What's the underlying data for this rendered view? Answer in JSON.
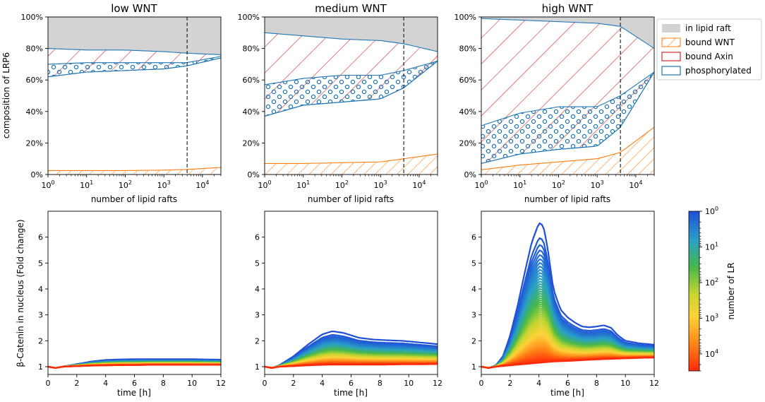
{
  "chart_data": [
    {
      "type": "area",
      "title": "low WNT",
      "xlabel": "number of lipid rafts",
      "ylabel": "composition of LRP6",
      "xscale": "log",
      "xlim": [
        1,
        30000
      ],
      "ylim": [
        0,
        100
      ],
      "x_ticks": [
        "10^0",
        "10^1",
        "10^2",
        "10^3",
        "10^4"
      ],
      "y_ticks": [
        "0%",
        "20%",
        "40%",
        "60%",
        "80%",
        "100%"
      ],
      "threshold_x": 4000,
      "series": [
        {
          "name": "in lipid raft",
          "x": [
            1,
            10,
            100,
            1000,
            4000,
            30000
          ],
          "lower": [
            80,
            79,
            79,
            78,
            77,
            76
          ],
          "upper": [
            100,
            100,
            100,
            100,
            100,
            100
          ]
        },
        {
          "name": "bound Axin",
          "x": [
            1,
            10,
            100,
            1000,
            4000,
            30000
          ],
          "lower": [
            62,
            65,
            66,
            67,
            69,
            74
          ],
          "upper": [
            80,
            79,
            79,
            78,
            77,
            76
          ]
        },
        {
          "name": "phosphorylated",
          "x": [
            1,
            10,
            100,
            1000,
            4000,
            30000
          ],
          "lower": [
            62,
            65,
            66,
            67,
            69,
            74
          ],
          "upper": [
            70,
            71,
            71,
            71,
            71,
            75
          ]
        },
        {
          "name": "bound WNT",
          "x": [
            1,
            10,
            100,
            1000,
            4000,
            30000
          ],
          "lower": [
            0,
            0,
            0,
            0,
            0,
            0
          ],
          "upper": [
            2.5,
            2.5,
            2.5,
            2.8,
            3.2,
            4.5
          ]
        }
      ]
    },
    {
      "type": "area",
      "title": "medium WNT",
      "xlabel": "number of lipid rafts",
      "ylabel": "composition of LRP6",
      "xscale": "log",
      "xlim": [
        1,
        30000
      ],
      "ylim": [
        0,
        100
      ],
      "x_ticks": [
        "10^0",
        "10^1",
        "10^2",
        "10^3",
        "10^4"
      ],
      "y_ticks": [
        "0%",
        "20%",
        "40%",
        "60%",
        "80%",
        "100%"
      ],
      "threshold_x": 4000,
      "series": [
        {
          "name": "in lipid raft",
          "x": [
            1,
            10,
            100,
            1000,
            4000,
            30000
          ],
          "lower": [
            90,
            88,
            86,
            85,
            83,
            78
          ],
          "upper": [
            100,
            100,
            100,
            100,
            100,
            100
          ]
        },
        {
          "name": "bound Axin",
          "x": [
            1,
            10,
            100,
            1000,
            4000,
            30000
          ],
          "lower": [
            37,
            44,
            46,
            48,
            55,
            72
          ],
          "upper": [
            90,
            88,
            86,
            85,
            83,
            78
          ]
        },
        {
          "name": "phosphorylated",
          "x": [
            1,
            10,
            100,
            1000,
            4000,
            30000
          ],
          "lower": [
            37,
            44,
            46,
            48,
            55,
            72
          ],
          "upper": [
            57,
            61,
            63,
            63,
            66,
            72
          ]
        },
        {
          "name": "bound WNT",
          "x": [
            1,
            10,
            100,
            1000,
            4000,
            30000
          ],
          "lower": [
            0,
            0,
            0,
            0,
            0,
            0
          ],
          "upper": [
            7,
            7,
            7.5,
            8,
            10,
            13
          ]
        }
      ]
    },
    {
      "type": "area",
      "title": "high WNT",
      "xlabel": "number of lipid rafts",
      "ylabel": "composition of LRP6",
      "xscale": "log",
      "xlim": [
        1,
        30000
      ],
      "ylim": [
        0,
        100
      ],
      "x_ticks": [
        "10^0",
        "10^1",
        "10^2",
        "10^3",
        "10^4"
      ],
      "y_ticks": [
        "0%",
        "20%",
        "40%",
        "60%",
        "80%",
        "100%"
      ],
      "threshold_x": 4000,
      "series": [
        {
          "name": "in lipid raft",
          "x": [
            1,
            10,
            100,
            1000,
            4000,
            30000
          ],
          "lower": [
            99,
            98,
            97,
            96,
            94,
            80
          ],
          "upper": [
            100,
            100,
            100,
            100,
            100,
            100
          ]
        },
        {
          "name": "bound Axin",
          "x": [
            1,
            10,
            100,
            1000,
            4000,
            30000
          ],
          "lower": [
            7,
            13,
            16,
            18,
            30,
            65
          ],
          "upper": [
            99,
            98,
            97,
            96,
            94,
            80
          ]
        },
        {
          "name": "phosphorylated",
          "x": [
            1,
            10,
            100,
            1000,
            4000,
            30000
          ],
          "lower": [
            7,
            13,
            16,
            18,
            30,
            65
          ],
          "upper": [
            31,
            39,
            43,
            43,
            50,
            65
          ]
        },
        {
          "name": "bound WNT",
          "x": [
            1,
            10,
            100,
            1000,
            4000,
            30000
          ],
          "lower": [
            0,
            0,
            0,
            0,
            0,
            0
          ],
          "upper": [
            3,
            6,
            8,
            10,
            14,
            30
          ]
        }
      ]
    },
    {
      "type": "line",
      "title": "",
      "xlabel": "time [h]",
      "ylabel": "β-Catenin in nucleus (Fold change)",
      "xlim": [
        0,
        12
      ],
      "ylim": [
        0.7,
        7
      ],
      "x_ticks": [
        0,
        2,
        4,
        6,
        8,
        10,
        12
      ],
      "y_ticks": [
        1,
        2,
        3,
        4,
        5,
        6
      ],
      "series": [
        {
          "name": "top (number of LR = 1)",
          "x": [
            0,
            0.5,
            1,
            2,
            3,
            4,
            5,
            6,
            7,
            8,
            9,
            10,
            11,
            12
          ],
          "values": [
            1.0,
            0.95,
            1.0,
            1.1,
            1.2,
            1.26,
            1.28,
            1.29,
            1.29,
            1.29,
            1.29,
            1.29,
            1.28,
            1.27
          ]
        },
        {
          "name": "bottom (number of LR = 30000)",
          "x": [
            0,
            0.5,
            1,
            2,
            3,
            4,
            5,
            6,
            7,
            8,
            9,
            10,
            11,
            12
          ],
          "values": [
            1.0,
            0.95,
            1.0,
            1.02,
            1.04,
            1.05,
            1.06,
            1.06,
            1.07,
            1.07,
            1.07,
            1.07,
            1.07,
            1.07
          ]
        }
      ]
    },
    {
      "type": "line",
      "title": "",
      "xlabel": "time [h]",
      "ylabel": "",
      "xlim": [
        0,
        12
      ],
      "ylim": [
        0.7,
        7
      ],
      "x_ticks": [
        0,
        2,
        4,
        6,
        8,
        10,
        12
      ],
      "y_ticks": [
        1,
        2,
        3,
        4,
        5,
        6
      ],
      "series": [
        {
          "name": "top (number of LR = 1)",
          "x": [
            0,
            0.5,
            1,
            2,
            3,
            4,
            4.7,
            5.5,
            6.5,
            7.5,
            8.5,
            9.5,
            10.5,
            12
          ],
          "values": [
            1.0,
            0.95,
            1.05,
            1.4,
            1.85,
            2.25,
            2.37,
            2.3,
            2.12,
            2.05,
            2.02,
            2.0,
            1.95,
            1.87
          ]
        },
        {
          "name": "bottom (number of LR = 30000)",
          "x": [
            0,
            0.5,
            1,
            2,
            3,
            4,
            4.7,
            5.5,
            6.5,
            7.5,
            8.5,
            9.5,
            10.5,
            12
          ],
          "values": [
            1.0,
            0.95,
            1.0,
            1.02,
            1.05,
            1.07,
            1.08,
            1.08,
            1.08,
            1.08,
            1.08,
            1.09,
            1.09,
            1.1
          ]
        }
      ]
    },
    {
      "type": "line",
      "title": "",
      "xlabel": "time [h]",
      "ylabel": "",
      "xlim": [
        0,
        12
      ],
      "ylim": [
        0.7,
        7
      ],
      "x_ticks": [
        0,
        2,
        4,
        6,
        8,
        10,
        12
      ],
      "y_ticks": [
        1,
        2,
        3,
        4,
        5,
        6
      ],
      "series": [
        {
          "name": "top (number of LR = 1)",
          "x": [
            0,
            0.5,
            1,
            1.5,
            2,
            2.5,
            3,
            3.5,
            4,
            4.3,
            4.6,
            5,
            5.5,
            6,
            6.5,
            7,
            7.5,
            8,
            8.5,
            9,
            9.5,
            10,
            11,
            12
          ],
          "values": [
            1.0,
            0.95,
            1.05,
            1.4,
            2.2,
            3.3,
            4.6,
            5.8,
            6.55,
            6.45,
            5.6,
            4.0,
            3.2,
            2.9,
            2.7,
            2.55,
            2.52,
            2.55,
            2.6,
            2.5,
            2.2,
            2.0,
            1.9,
            1.85
          ]
        },
        {
          "name": "bottom (number of LR = 30000)",
          "x": [
            0,
            0.5,
            1,
            2,
            3,
            4,
            5,
            6,
            7,
            8,
            9,
            10,
            11,
            12
          ],
          "values": [
            1.0,
            0.95,
            1.0,
            1.05,
            1.1,
            1.15,
            1.2,
            1.22,
            1.25,
            1.28,
            1.3,
            1.32,
            1.34,
            1.35
          ]
        }
      ]
    }
  ],
  "legend": {
    "items": [
      {
        "label": "in lipid raft",
        "style": "gray-fill"
      },
      {
        "label": "bound WNT",
        "style": "orange-hatch"
      },
      {
        "label": "bound Axin",
        "style": "red-hatch"
      },
      {
        "label": "phosphorylated",
        "style": "blue-circles"
      }
    ]
  },
  "colorbar": {
    "label": "number of LR",
    "scale": "log",
    "range": [
      1,
      30000
    ],
    "ticks": [
      "10^0",
      "10^1",
      "10^2",
      "10^3",
      "10^4"
    ],
    "colormap": "turbo-like (blue → green → yellow → orange → red)"
  },
  "colors": {
    "raft": "#d3d3d3",
    "wnt": "#ff7f0e",
    "axin": "#d62728",
    "phos": "#1f77b4"
  }
}
